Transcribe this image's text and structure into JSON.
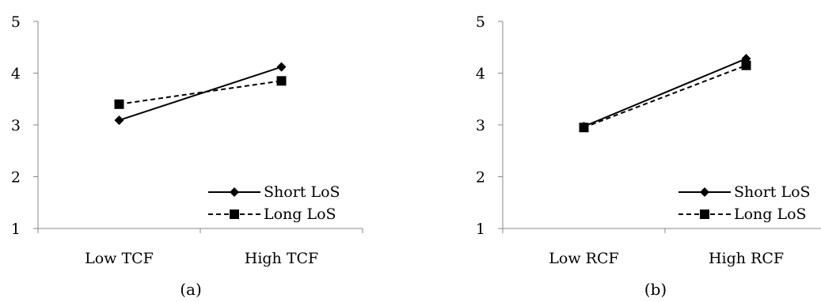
{
  "chart_data": [
    {
      "type": "line",
      "caption": "(a)",
      "categories": [
        "Low TCF",
        "High TCF"
      ],
      "ylim": [
        1,
        5
      ],
      "yticks": [
        1,
        2,
        3,
        4,
        5
      ],
      "grid": false,
      "legend_position": "bottom-right",
      "series": [
        {
          "name": "Short LoS",
          "values": [
            3.09,
            4.12
          ],
          "line_style": "solid",
          "marker": "diamond"
        },
        {
          "name": "Long LoS",
          "values": [
            3.4,
            3.85
          ],
          "line_style": "dashed",
          "marker": "square"
        }
      ]
    },
    {
      "type": "line",
      "caption": "(b)",
      "categories": [
        "Low RCF",
        "High RCF"
      ],
      "ylim": [
        1,
        5
      ],
      "yticks": [
        1,
        2,
        3,
        4,
        5
      ],
      "grid": false,
      "legend_position": "bottom-right",
      "series": [
        {
          "name": "Short LoS",
          "values": [
            2.97,
            4.28
          ],
          "line_style": "solid",
          "marker": "diamond"
        },
        {
          "name": "Long LoS",
          "values": [
            2.95,
            4.15
          ],
          "line_style": "dashed",
          "marker": "square"
        }
      ]
    }
  ],
  "colors": {
    "lines": "#000000",
    "background": "#ffffff"
  }
}
